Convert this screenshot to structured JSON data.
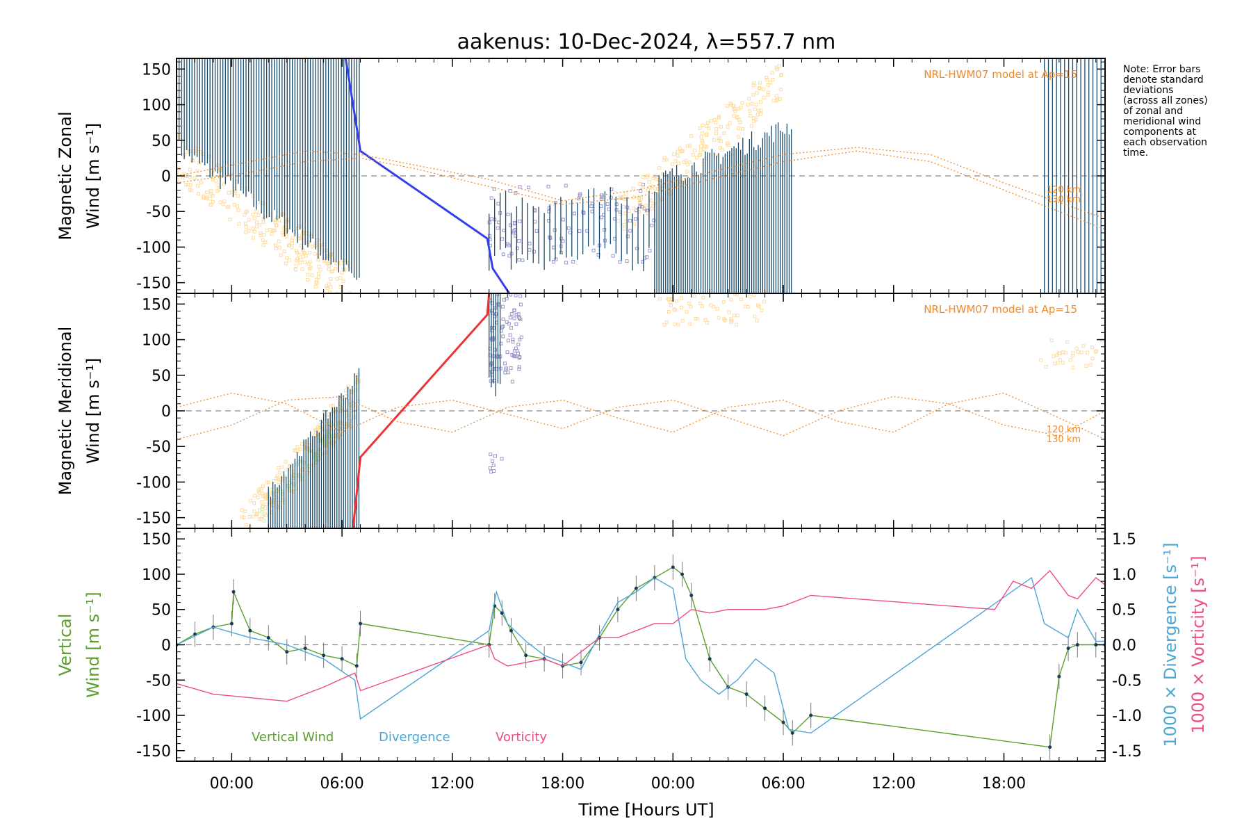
{
  "title": "aakenus: 10-Dec-2024, λ=557.7 nm",
  "note": [
    "Note: Error bars",
    "denote standard",
    "deviations",
    "(across all zones)",
    "of zonal and",
    "meridional wind",
    "components at",
    "each observation",
    "time."
  ],
  "xlabel": "Time [Hours UT]",
  "x_tick_labels": [
    "00:00",
    "06:00",
    "12:00",
    "18:00",
    "00:00",
    "06:00",
    "12:00",
    "18:00"
  ],
  "colors": {
    "zonal_line": "#3340ee",
    "meridional_line": "#ee3333",
    "errorbar": "#1a4a6a",
    "model": "#f08a28",
    "model_label": "#f08a28",
    "obs_light": "#fddca0",
    "obs_purple": "#9b95c8",
    "obs_green": "#c8f0b4",
    "vertical": "#5aa02a",
    "divergence": "#4aa6d6",
    "vorticity": "#ee4c88",
    "zero_line": "#888888"
  },
  "chart_data": [
    {
      "type": "line",
      "panel": "zonal",
      "ylabel": [
        "Magnetic Zonal",
        "Wind [m s⁻¹]"
      ],
      "ylim": [
        -165,
        165
      ],
      "yticks": [
        -150,
        -100,
        -50,
        0,
        50,
        100,
        150
      ],
      "xlim_hours": [
        -3,
        47.5
      ],
      "model_label": "NRL-HWM07 model at Ap=15",
      "model_alt_labels": [
        "120 km",
        "130 km"
      ],
      "series": [
        {
          "role": "fit",
          "x": [
            6.2,
            7,
            13.9,
            14.2,
            15.1
          ],
          "values": [
            165,
            35,
            -88,
            -130,
            -165
          ]
        },
        {
          "role": "model_a",
          "x": [
            -3,
            1,
            4,
            7,
            10,
            14,
            18,
            22,
            26,
            30,
            34,
            38,
            42,
            47.5
          ],
          "values": [
            0,
            20,
            35,
            30,
            15,
            -5,
            -35,
            -20,
            5,
            30,
            40,
            30,
            -10,
            -60
          ]
        },
        {
          "role": "model_b",
          "x": [
            -3,
            1,
            4,
            7,
            10,
            14,
            18,
            22,
            26,
            30,
            34,
            38,
            42,
            47.5
          ],
          "values": [
            -10,
            5,
            20,
            25,
            10,
            -15,
            -40,
            -30,
            -5,
            20,
            35,
            20,
            -20,
            -75
          ]
        }
      ]
    },
    {
      "type": "line",
      "panel": "meridional",
      "ylabel": [
        "Magnetic Meridional",
        "Wind [m s⁻¹]"
      ],
      "ylim": [
        -165,
        165
      ],
      "yticks": [
        -150,
        -100,
        -50,
        0,
        50,
        100,
        150
      ],
      "xlim_hours": [
        -3,
        47.5
      ],
      "model_label": "NRL-HWM07 model at Ap=15",
      "model_alt_labels": [
        "120 km",
        "130 km"
      ],
      "series": [
        {
          "role": "fit",
          "x": [
            6.6,
            7.0,
            13.9,
            14.0
          ],
          "values": [
            -165,
            -65,
            135,
            165
          ]
        },
        {
          "role": "model_a",
          "x": [
            -3,
            0,
            3,
            6,
            9,
            12,
            15,
            18,
            21,
            24,
            27,
            30,
            33,
            36,
            39,
            42,
            45,
            47.5
          ],
          "values": [
            5,
            25,
            10,
            -30,
            5,
            15,
            -5,
            -25,
            5,
            15,
            -10,
            -35,
            0,
            20,
            10,
            -20,
            -35,
            0
          ]
        },
        {
          "role": "model_b",
          "x": [
            -3,
            0,
            3,
            6,
            9,
            12,
            15,
            18,
            21,
            24,
            27,
            30,
            33,
            36,
            39,
            42,
            45,
            47.5
          ],
          "values": [
            -40,
            -20,
            15,
            20,
            -15,
            -30,
            5,
            15,
            -10,
            -30,
            5,
            15,
            -15,
            -30,
            10,
            25,
            -10,
            -40
          ]
        }
      ]
    },
    {
      "type": "line",
      "panel": "vertical",
      "ylabel": [
        "Vertical",
        "Wind [m s⁻¹]"
      ],
      "ylim": [
        -165,
        165
      ],
      "yticks": [
        -150,
        -100,
        -50,
        0,
        50,
        100,
        150
      ],
      "right_axis_1": {
        "label": "1000 × Divergence [s⁻¹]",
        "ticks": [
          "1.5",
          "1.0",
          "0.5",
          "0.0",
          "-0.5",
          "-1.0",
          "-1.5"
        ]
      },
      "right_axis_2": {
        "label": "1000 × Vorticity [s⁻¹]"
      },
      "legend": [
        "Vertical Wind",
        "Divergence",
        "Vorticity"
      ],
      "xlim_hours": [
        -3,
        47.5
      ],
      "series": [
        {
          "name": "Vertical Wind",
          "x": [
            -3,
            -2,
            -1,
            0,
            0.1,
            1,
            2,
            3,
            4,
            5,
            6,
            6.8,
            7.0,
            14.0,
            14.3,
            14.7,
            15.2,
            16,
            17,
            18,
            19,
            20,
            21,
            22,
            23,
            24,
            24.5,
            25,
            26,
            27,
            28,
            29,
            30,
            30.5,
            31.5,
            44.5,
            45,
            45.5,
            46,
            47,
            47.5
          ],
          "values": [
            0,
            15,
            25,
            30,
            75,
            20,
            10,
            -10,
            -5,
            -15,
            -20,
            -30,
            30,
            0,
            55,
            45,
            20,
            -15,
            -20,
            -30,
            -25,
            10,
            50,
            80,
            95,
            110,
            100,
            70,
            -20,
            -60,
            -70,
            -90,
            -110,
            -125,
            -100,
            -145,
            -45,
            -5,
            0,
            0,
            0
          ]
        },
        {
          "name": "Divergence",
          "x": [
            -3,
            -1,
            1,
            3,
            5,
            6.7,
            7.0,
            14.0,
            14.4,
            15,
            16,
            17,
            18,
            19,
            20,
            21,
            22,
            23,
            24,
            24.7,
            25.5,
            26.5,
            27.5,
            28.5,
            29.5,
            30,
            30.3,
            31.5,
            43.5,
            44.2,
            45.5,
            46,
            47,
            47.5
          ],
          "values": [
            0.0,
            0.25,
            0.1,
            0.0,
            -0.2,
            -0.5,
            -1.05,
            0.2,
            0.75,
            0.3,
            0.05,
            -0.15,
            -0.25,
            -0.35,
            0.15,
            0.6,
            0.75,
            0.95,
            0.8,
            -0.2,
            -0.5,
            -0.7,
            -0.5,
            -0.2,
            -0.4,
            -0.9,
            -1.2,
            -1.25,
            0.95,
            0.3,
            0.1,
            0.5,
            0.05,
            0.05
          ]
        },
        {
          "name": "Vorticity",
          "x": [
            -3,
            -1,
            1,
            3,
            5,
            6.7,
            7.0,
            14.0,
            14.3,
            15,
            16,
            17,
            18,
            19,
            20,
            21,
            22,
            23,
            24,
            25,
            26,
            27,
            28,
            29,
            30,
            31.5,
            41.5,
            42.5,
            43.5,
            44.5,
            45.5,
            46,
            46.5,
            47,
            47.5
          ],
          "values": [
            -0.55,
            -0.7,
            -0.75,
            -0.8,
            -0.6,
            -0.4,
            -0.65,
            0.0,
            -0.2,
            -0.3,
            -0.25,
            -0.2,
            -0.3,
            -0.1,
            0.1,
            0.1,
            0.2,
            0.3,
            0.3,
            0.5,
            0.45,
            0.5,
            0.5,
            0.5,
            0.55,
            0.7,
            0.5,
            0.9,
            0.8,
            1.05,
            0.7,
            0.65,
            0.8,
            0.95,
            0.85
          ]
        }
      ]
    }
  ]
}
